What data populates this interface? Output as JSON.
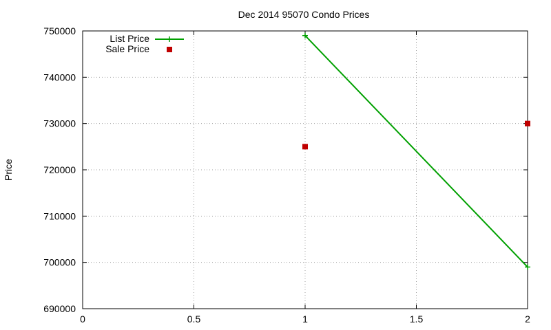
{
  "chart_data": {
    "type": "line",
    "title": "Dec 2014 95070 Condo Prices",
    "xlabel": "",
    "ylabel": "Price",
    "xlim": [
      0,
      2
    ],
    "ylim": [
      690000,
      750000
    ],
    "x_ticks": [
      "0",
      "0.5",
      "1",
      "1.5",
      "2"
    ],
    "y_ticks": [
      "690000",
      "700000",
      "710000",
      "720000",
      "730000",
      "740000",
      "750000"
    ],
    "grid": true,
    "legend_position": "top-left",
    "series": [
      {
        "name": "List Price",
        "style": "linespoints",
        "marker": "plus",
        "color": "#00a000",
        "points": [
          {
            "x": 1,
            "y": 749000
          },
          {
            "x": 2,
            "y": 699000
          }
        ]
      },
      {
        "name": "Sale Price",
        "style": "points",
        "marker": "square",
        "color": "#c00000",
        "points": [
          {
            "x": 1,
            "y": 725000
          },
          {
            "x": 2,
            "y": 730000
          }
        ]
      }
    ]
  }
}
